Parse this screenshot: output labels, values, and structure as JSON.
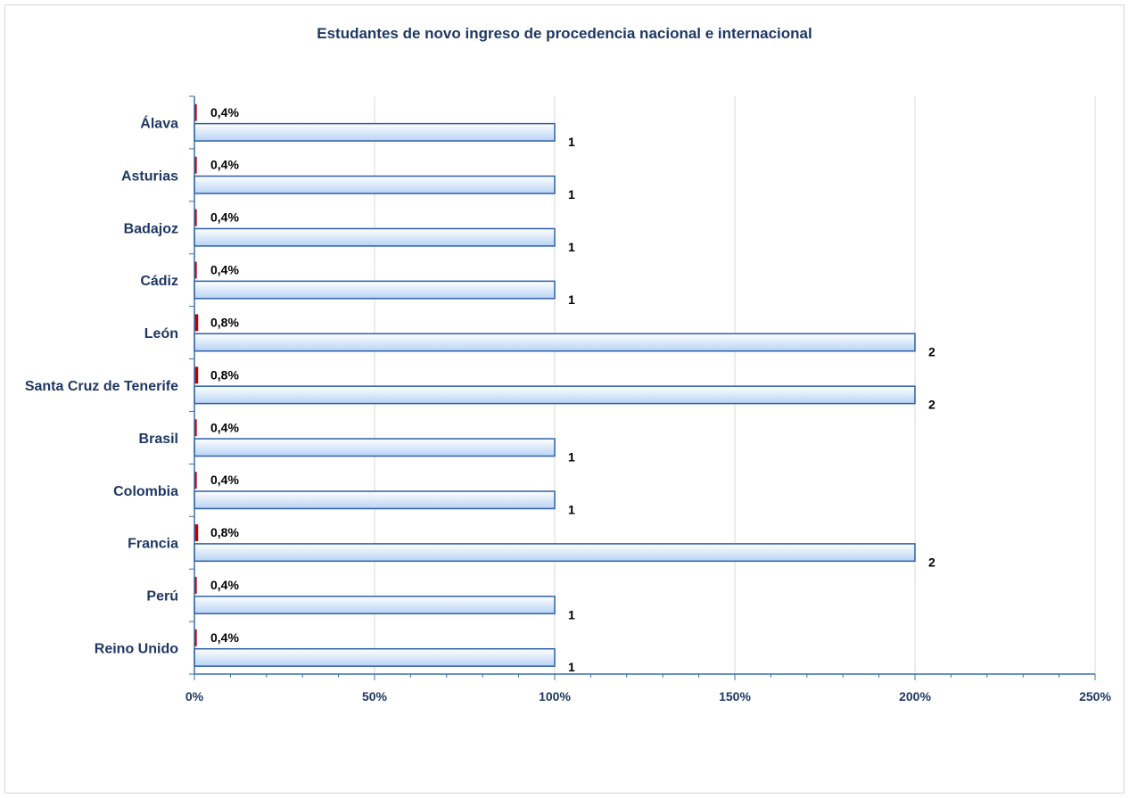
{
  "chart_data": {
    "type": "bar",
    "orientation": "horizontal",
    "title": "Estudantes de novo ingreso de procedencia nacional e internacional",
    "categories": [
      "Álava",
      "Asturias",
      "Badajoz",
      "Cádiz",
      "León",
      "Santa Cruz de Tenerife",
      "Brasil",
      "Colombia",
      "Francia",
      "Perú",
      "Reino Unido"
    ],
    "series": [
      {
        "values": [
          1,
          1,
          1,
          1,
          2,
          2,
          1,
          1,
          2,
          1,
          1
        ],
        "labels": [
          "1",
          "1",
          "1",
          "1",
          "2",
          "2",
          "1",
          "1",
          "2",
          "1",
          "1"
        ],
        "color": "#c5dcf7",
        "stroke": "#2e5ea8"
      },
      {
        "values": [
          0.4,
          0.4,
          0.4,
          0.4,
          0.8,
          0.8,
          0.4,
          0.4,
          0.8,
          0.4,
          0.4
        ],
        "labels": [
          "0,4%",
          "0,4%",
          "0,4%",
          "0,4%",
          "0,8%",
          "0,8%",
          "0,4%",
          "0,4%",
          "0,8%",
          "0,4%",
          "0,4%"
        ],
        "color": "#c00000"
      }
    ],
    "x_ticks": [
      "0%",
      "50%",
      "100%",
      "150%",
      "200%",
      "250%"
    ],
    "xlim": [
      0,
      2.5
    ],
    "grid": true,
    "legend": "none"
  }
}
